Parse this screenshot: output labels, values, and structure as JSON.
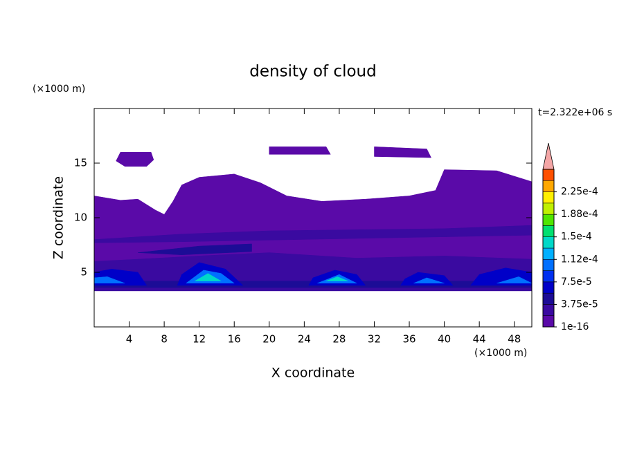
{
  "chart_data": {
    "type": "contour",
    "title": "density of cloud",
    "x_label": "X coordinate",
    "y_label": "Z coordinate",
    "x_unit": "(×1000 m)",
    "y_unit": "(×1000 m)",
    "time_label": "t=2.322e+06 s",
    "xlim": [
      0,
      50
    ],
    "ylim": [
      0,
      20
    ],
    "xticks": [
      4,
      8,
      12,
      16,
      20,
      24,
      28,
      32,
      36,
      40,
      44,
      48
    ],
    "yticks": [
      5,
      10,
      15
    ],
    "colorbar": {
      "clim": [
        1e-16,
        0.0002625
      ],
      "colors": [
        "#5a0aa8",
        "#3a0aa0",
        "#1c0c96",
        "#0000c8",
        "#0030f0",
        "#0070ff",
        "#00b0ff",
        "#00d8c8",
        "#00e070",
        "#50e600",
        "#c0f000",
        "#fff000",
        "#ffa800",
        "#ff5000"
      ],
      "over_color": "#f4a6a6",
      "ticks": [
        {
          "value": 1e-16,
          "label": "1e-16"
        },
        {
          "value": 3.75e-05,
          "label": "3.75e-5"
        },
        {
          "value": 7.5e-05,
          "label": "7.5e-5"
        },
        {
          "value": 0.0001125,
          "label": "1.12e-4"
        },
        {
          "value": 0.00015,
          "label": "1.5e-4"
        },
        {
          "value": 0.0001875,
          "label": "1.88e-4"
        },
        {
          "value": 0.000225,
          "label": "2.25e-4"
        }
      ]
    },
    "regions": [
      {
        "value": 1e-16,
        "points": [
          [
            0,
            3.3
          ],
          [
            50,
            3.3
          ],
          [
            50,
            13.3
          ],
          [
            46,
            14.3
          ],
          [
            40,
            14.4
          ],
          [
            39,
            12.5
          ],
          [
            36,
            12
          ],
          [
            31,
            11.7
          ],
          [
            26,
            11.5
          ],
          [
            22,
            12
          ],
          [
            19,
            13.2
          ],
          [
            16,
            14
          ],
          [
            12,
            13.7
          ],
          [
            10,
            13
          ],
          [
            9,
            11.5
          ],
          [
            8,
            10.3
          ],
          [
            7,
            10.7
          ],
          [
            5,
            11.7
          ],
          [
            3,
            11.6
          ],
          [
            0,
            12
          ]
        ]
      },
      {
        "value": 1e-16,
        "points": [
          [
            2.5,
            15.2
          ],
          [
            3,
            16
          ],
          [
            6.5,
            16
          ],
          [
            6.8,
            15.3
          ],
          [
            6,
            14.7
          ],
          [
            3.5,
            14.7
          ]
        ]
      },
      {
        "value": 1e-16,
        "points": [
          [
            20,
            16.5
          ],
          [
            26.5,
            16.5
          ],
          [
            27,
            15.8
          ],
          [
            20,
            15.8
          ]
        ]
      },
      {
        "value": 1e-16,
        "points": [
          [
            32,
            16.5
          ],
          [
            38,
            16.3
          ],
          [
            38.5,
            15.5
          ],
          [
            32,
            15.6
          ]
        ]
      },
      {
        "value": 1.875e-05,
        "points": [
          [
            0,
            3.3
          ],
          [
            50,
            3.3
          ],
          [
            50,
            6.2
          ],
          [
            40,
            6.5
          ],
          [
            30,
            6.3
          ],
          [
            20,
            6.8
          ],
          [
            12,
            6.5
          ],
          [
            5,
            6.2
          ],
          [
            0,
            6
          ]
        ]
      },
      {
        "value": 1.875e-05,
        "points": [
          [
            0,
            8
          ],
          [
            10,
            8.5
          ],
          [
            20,
            8.8
          ],
          [
            40,
            9
          ],
          [
            50,
            9.3
          ],
          [
            50,
            8.4
          ],
          [
            30,
            8.1
          ],
          [
            10,
            7.8
          ],
          [
            0,
            7.7
          ]
        ]
      },
      {
        "value": 3.75e-05,
        "points": [
          [
            0,
            3.6
          ],
          [
            50,
            3.6
          ],
          [
            50,
            4.2
          ],
          [
            0,
            4.2
          ]
        ]
      },
      {
        "value": 3.75e-05,
        "points": [
          [
            5,
            6.8
          ],
          [
            12,
            7.4
          ],
          [
            18,
            7.6
          ],
          [
            18,
            6.9
          ],
          [
            10,
            6.6
          ]
        ]
      },
      {
        "value": 5.625e-05,
        "points": [
          [
            0,
            3.8
          ],
          [
            6,
            3.8
          ],
          [
            5,
            5
          ],
          [
            2,
            5.3
          ],
          [
            0,
            5
          ]
        ]
      },
      {
        "value": 5.625e-05,
        "points": [
          [
            9.5,
            3.8
          ],
          [
            17,
            3.8
          ],
          [
            15,
            5.3
          ],
          [
            12,
            5.9
          ],
          [
            10,
            4.8
          ]
        ]
      },
      {
        "value": 5.625e-05,
        "points": [
          [
            24.5,
            3.8
          ],
          [
            31,
            3.8
          ],
          [
            30,
            4.8
          ],
          [
            27.5,
            5.2
          ],
          [
            25,
            4.5
          ]
        ]
      },
      {
        "value": 5.625e-05,
        "points": [
          [
            35,
            3.8
          ],
          [
            41,
            3.8
          ],
          [
            40,
            4.7
          ],
          [
            37,
            5
          ],
          [
            35.5,
            4.4
          ]
        ]
      },
      {
        "value": 5.625e-05,
        "points": [
          [
            43,
            3.8
          ],
          [
            50,
            3.8
          ],
          [
            50,
            5
          ],
          [
            47,
            5.4
          ],
          [
            44,
            4.8
          ]
        ]
      },
      {
        "value": 9.375e-05,
        "points": [
          [
            10.5,
            4
          ],
          [
            16,
            4
          ],
          [
            14.5,
            4.9
          ],
          [
            12.5,
            5.2
          ]
        ]
      },
      {
        "value": 9.375e-05,
        "points": [
          [
            25.5,
            4
          ],
          [
            30,
            4
          ],
          [
            28,
            4.8
          ]
        ]
      },
      {
        "value": 9.375e-05,
        "points": [
          [
            0,
            4
          ],
          [
            3.5,
            4
          ],
          [
            1.5,
            4.6
          ],
          [
            0,
            4.5
          ]
        ]
      },
      {
        "value": 9.375e-05,
        "points": [
          [
            36.5,
            4
          ],
          [
            40,
            4
          ],
          [
            38,
            4.5
          ]
        ]
      },
      {
        "value": 9.375e-05,
        "points": [
          [
            46,
            4
          ],
          [
            50,
            4
          ],
          [
            48.5,
            4.6
          ]
        ]
      },
      {
        "value": 0.00013125,
        "points": [
          [
            11.5,
            4.2
          ],
          [
            14.5,
            4.2
          ],
          [
            13,
            4.9
          ]
        ]
      },
      {
        "value": 0.00013125,
        "points": [
          [
            26.5,
            4.2
          ],
          [
            29,
            4.2
          ],
          [
            27.8,
            4.6
          ]
        ]
      }
    ]
  }
}
